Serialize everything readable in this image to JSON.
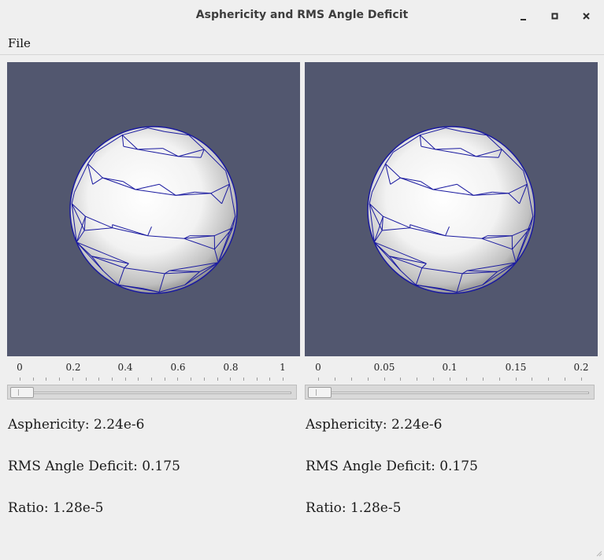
{
  "window": {
    "title": "Asphericity and RMS Angle Deficit",
    "minimize_icon": "minimize-icon",
    "maximize_icon": "maximize-icon",
    "close_icon": "close-icon"
  },
  "menu": {
    "file": "File"
  },
  "colors": {
    "viewport_bg": "#52576f",
    "mesh_edge": "#1a1aa0"
  },
  "left": {
    "ticks": [
      "0",
      "0.2",
      "0.4",
      "0.6",
      "0.8",
      "1"
    ],
    "slider_value": 0,
    "asphericity": "Asphericity: 2.24e-6",
    "rms": "RMS Angle Deficit: 0.175",
    "ratio": "Ratio: 1.28e-5"
  },
  "right": {
    "ticks": [
      "0",
      "0.05",
      "0.1",
      "0.15",
      "0.2"
    ],
    "slider_value": 0,
    "asphericity": "Asphericity: 2.24e-6",
    "rms": "RMS Angle Deficit: 0.175",
    "ratio": "Ratio: 1.28e-5"
  }
}
